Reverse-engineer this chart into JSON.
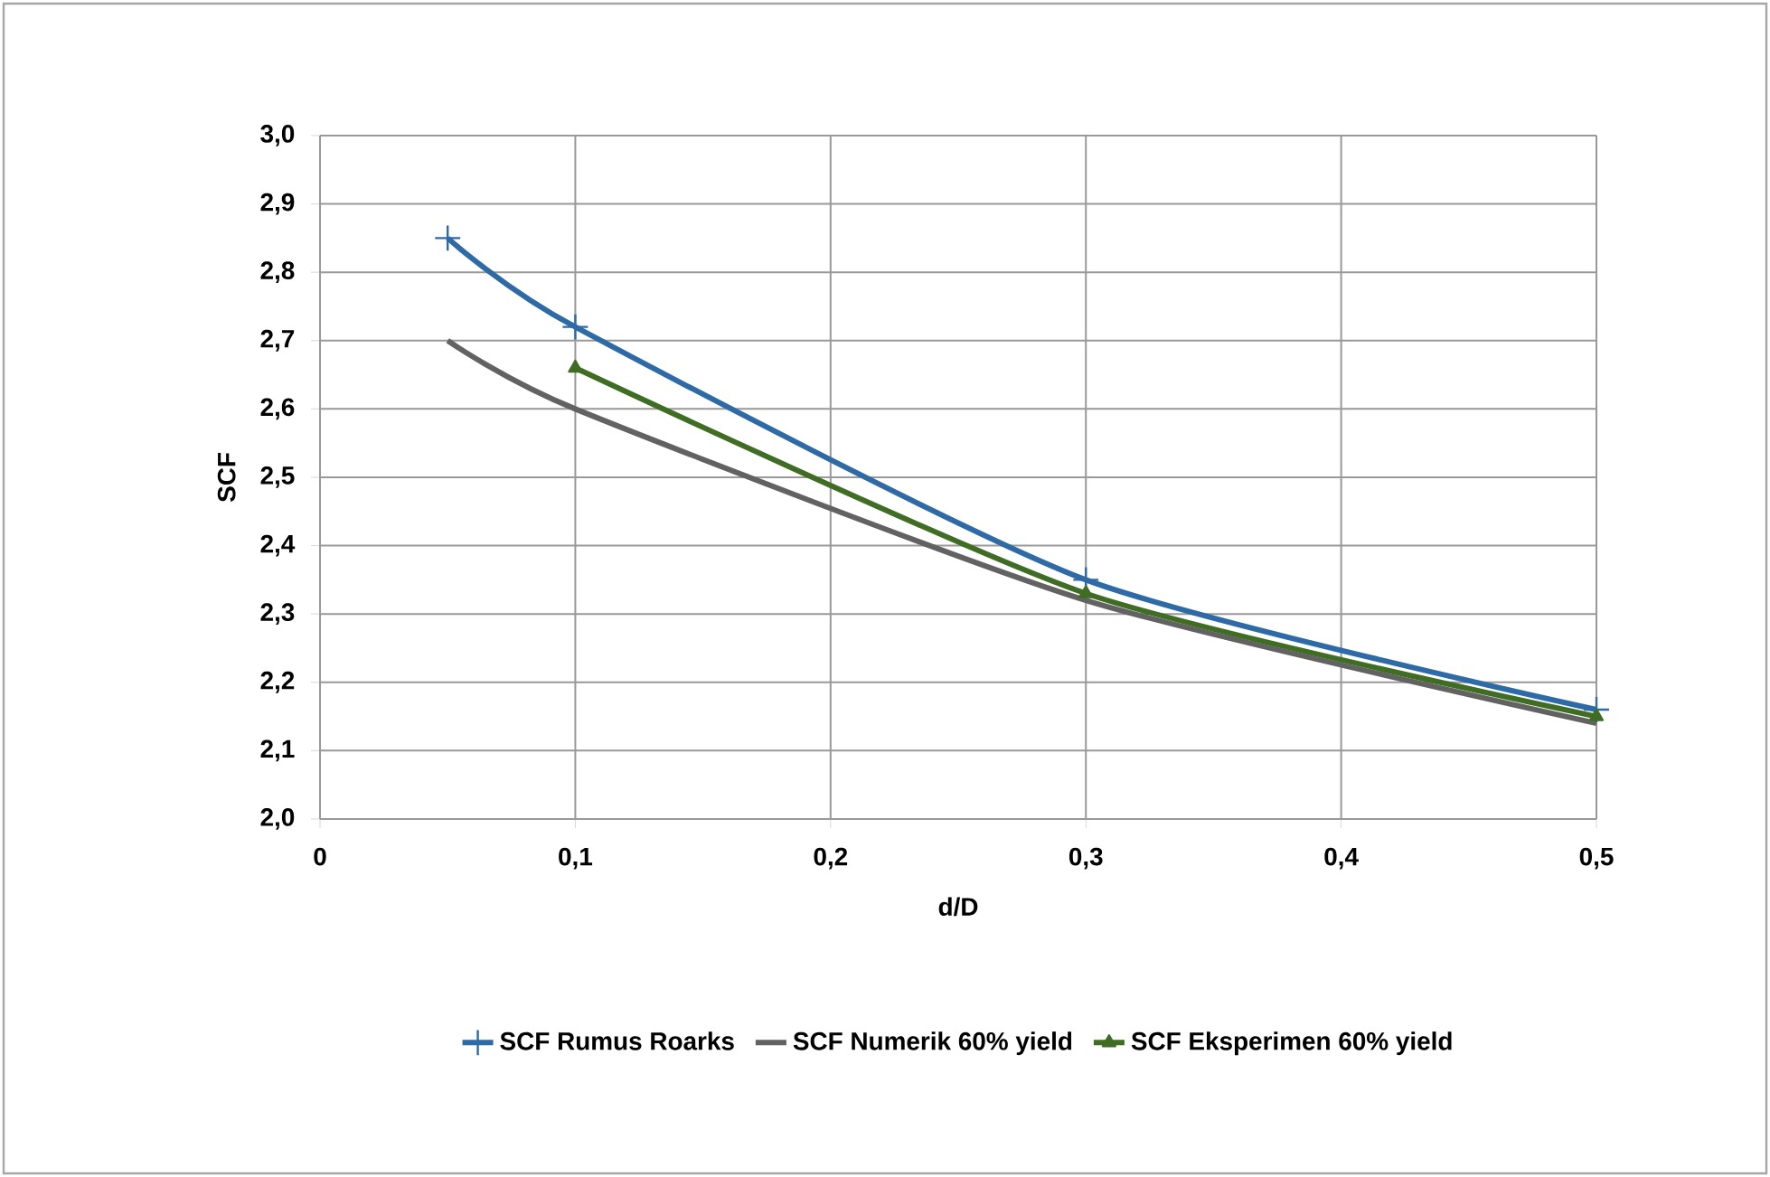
{
  "chart_data": {
    "type": "line",
    "xlabel": "d/D",
    "ylabel": "SCF",
    "xlim": [
      0,
      0.5
    ],
    "ylim": [
      2.0,
      3.0
    ],
    "xticks": [
      0,
      {
        "value": 0.1,
        "label": "0,1"
      },
      {
        "value": 0.2,
        "label": "0,2"
      },
      {
        "value": 0.3,
        "label": "0,3"
      },
      {
        "value": 0.4,
        "label": "0,4"
      },
      {
        "value": 0.5,
        "label": "0,5"
      }
    ],
    "yticks": [
      {
        "value": 2.0,
        "label": "2,0"
      },
      {
        "value": 2.1,
        "label": "2,1"
      },
      {
        "value": 2.2,
        "label": "2,2"
      },
      {
        "value": 2.3,
        "label": "2,3"
      },
      {
        "value": 2.4,
        "label": "2,4"
      },
      {
        "value": 2.5,
        "label": "2,5"
      },
      {
        "value": 2.6,
        "label": "2,6"
      },
      {
        "value": 2.7,
        "label": "2,7"
      },
      {
        "value": 2.8,
        "label": "2,8"
      },
      {
        "value": 2.9,
        "label": "2,9"
      },
      {
        "value": 3.0,
        "label": "3,0"
      }
    ],
    "grid": true,
    "legend": "bottom",
    "series": [
      {
        "name": "SCF Rumus Roarks",
        "color": "#2e6aa5",
        "marker": "cross",
        "x": [
          0.05,
          0.1,
          0.3,
          0.5
        ],
        "values": [
          2.85,
          2.72,
          2.35,
          2.16
        ]
      },
      {
        "name": "SCF Numerik 60% yield",
        "color": "#626262",
        "marker": "none",
        "x": [
          0.05,
          0.1,
          0.3,
          0.5
        ],
        "values": [
          2.7,
          2.6,
          2.32,
          2.14
        ]
      },
      {
        "name": "SCF Eksperimen 60% yield",
        "color": "#3f6d24",
        "marker": "triangle",
        "x": [
          0.1,
          0.3,
          0.5
        ],
        "values": [
          2.66,
          2.33,
          2.15
        ]
      }
    ]
  }
}
